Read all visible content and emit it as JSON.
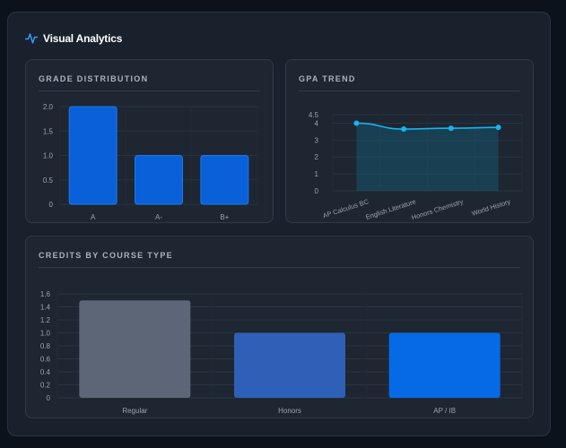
{
  "header": {
    "title": "Visual Analytics",
    "icon": "activity-icon",
    "accent": "#3b9cff"
  },
  "grade_chart": {
    "title": "GRADE DISTRIBUTION",
    "chart_data": {
      "type": "bar",
      "categories": [
        "A",
        "A-",
        "B+"
      ],
      "values": [
        2,
        1,
        1
      ],
      "ylim": [
        0,
        2
      ],
      "yticks": [
        "0",
        "0.5",
        "1.0",
        "1.5",
        "2.0"
      ],
      "color": "#0a60d8",
      "grid": true
    }
  },
  "gpa_chart": {
    "title": "GPA TREND",
    "chart_data": {
      "type": "area",
      "categories": [
        "AP Calculus BC",
        "English Literature",
        "Honors Chemistry",
        "World History"
      ],
      "values": [
        4.0,
        3.65,
        3.7,
        3.75
      ],
      "ylim": [
        0,
        4.5
      ],
      "yticks": [
        "0",
        "1",
        "2",
        "3",
        "4",
        "4.5"
      ],
      "color": "#18b4f0",
      "grid": true
    }
  },
  "credits_chart": {
    "title": "CREDITS BY COURSE TYPE",
    "chart_data": {
      "type": "bar",
      "categories": [
        "Regular",
        "Honors",
        "AP / IB"
      ],
      "values": [
        1.5,
        1.0,
        1.0
      ],
      "ylim": [
        0,
        1.6
      ],
      "yticks": [
        "0",
        "0.2",
        "0.4",
        "0.6",
        "0.8",
        "1.0",
        "1.2",
        "1.4",
        "1.6"
      ],
      "colors": [
        "#5c6676",
        "#2e60b8",
        "#066ae6"
      ],
      "grid": true
    }
  }
}
